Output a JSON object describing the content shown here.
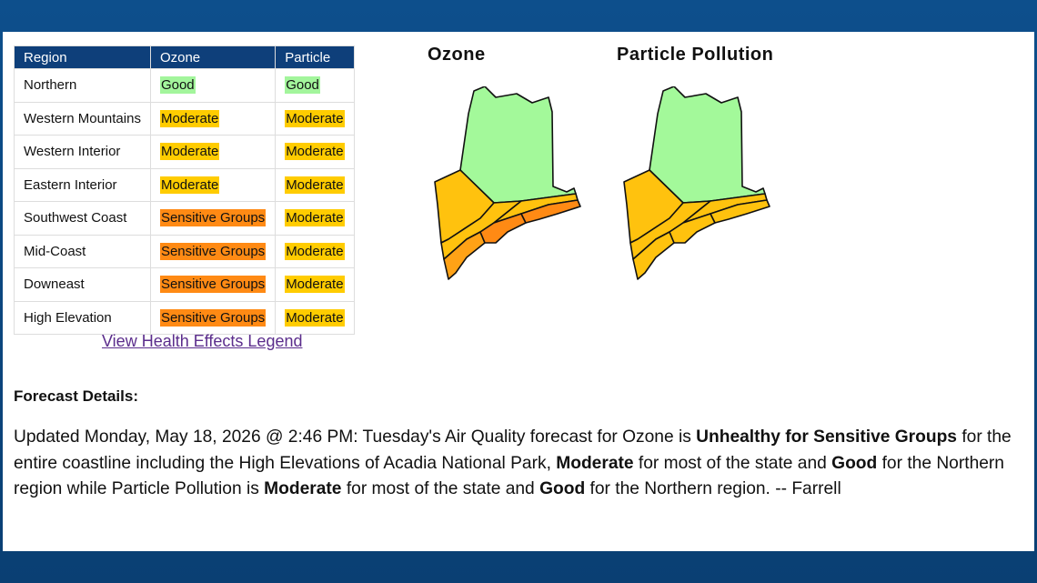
{
  "table": {
    "header": [
      "Region",
      "Ozone",
      "Particle"
    ],
    "rows": [
      [
        "Northern",
        {
          "text": "Good",
          "color": "#a3f59c"
        },
        {
          "text": "Good",
          "color": "#a3f59c"
        }
      ],
      [
        "Western Mountains",
        {
          "text": "Moderate",
          "color": "#ffcc00"
        },
        {
          "text": "Moderate",
          "color": "#ffcc00"
        }
      ],
      [
        "Western Interior",
        {
          "text": "Moderate",
          "color": "#ffcc00"
        },
        {
          "text": "Moderate",
          "color": "#ffcc00"
        }
      ],
      [
        "Eastern Interior",
        {
          "text": "Moderate",
          "color": "#ffcc00"
        },
        {
          "text": "Moderate",
          "color": "#ffcc00"
        }
      ],
      [
        "Southwest Coast",
        {
          "text": "Sensitive Groups",
          "color": "#ff8a14"
        },
        {
          "text": "Moderate",
          "color": "#ffcc00"
        }
      ],
      [
        "Mid-Coast",
        {
          "text": "Sensitive Groups",
          "color": "#ff8a14"
        },
        {
          "text": "Moderate",
          "color": "#ffcc00"
        }
      ],
      [
        "Downeast",
        {
          "text": "Sensitive Groups",
          "color": "#ff8a14"
        },
        {
          "text": "Moderate",
          "color": "#ffcc00"
        }
      ],
      [
        "High Elevation",
        {
          "text": "Sensitive Groups",
          "color": "#ff8a14"
        },
        {
          "text": "Moderate",
          "color": "#ffcc00"
        }
      ]
    ]
  },
  "link": "View Health Effects Legend",
  "map_titles": [
    "Ozone",
    "Particle Pollution"
  ],
  "forecast": {
    "heading": "Forecast Details:",
    "segments": [
      {
        "text": "Updated Monday, May 18, 2026 @ 2:46 PM: Tuesday's Air Quality forecast for Ozone is",
        "bold": false
      },
      {
        "text": "Unhealthy for Sensitive Groups",
        "bold": true
      },
      {
        "text": "for the entire coastline including the High Elevations of Acadia National Park,",
        "bold": false
      },
      {
        "text": "Moderate",
        "bold": true
      },
      {
        "text": "for most of the state and",
        "bold": false
      },
      {
        "text": "Good",
        "bold": true
      },
      {
        "text": "for the Northern region while Particle Pollution is",
        "bold": false
      },
      {
        "text": "Moderate",
        "bold": true
      },
      {
        "text": "for most of the state and",
        "bold": false
      },
      {
        "text": "Good",
        "bold": true
      },
      {
        "text": "for the Northern region. -- Farrell",
        "bold": false
      }
    ]
  }
}
